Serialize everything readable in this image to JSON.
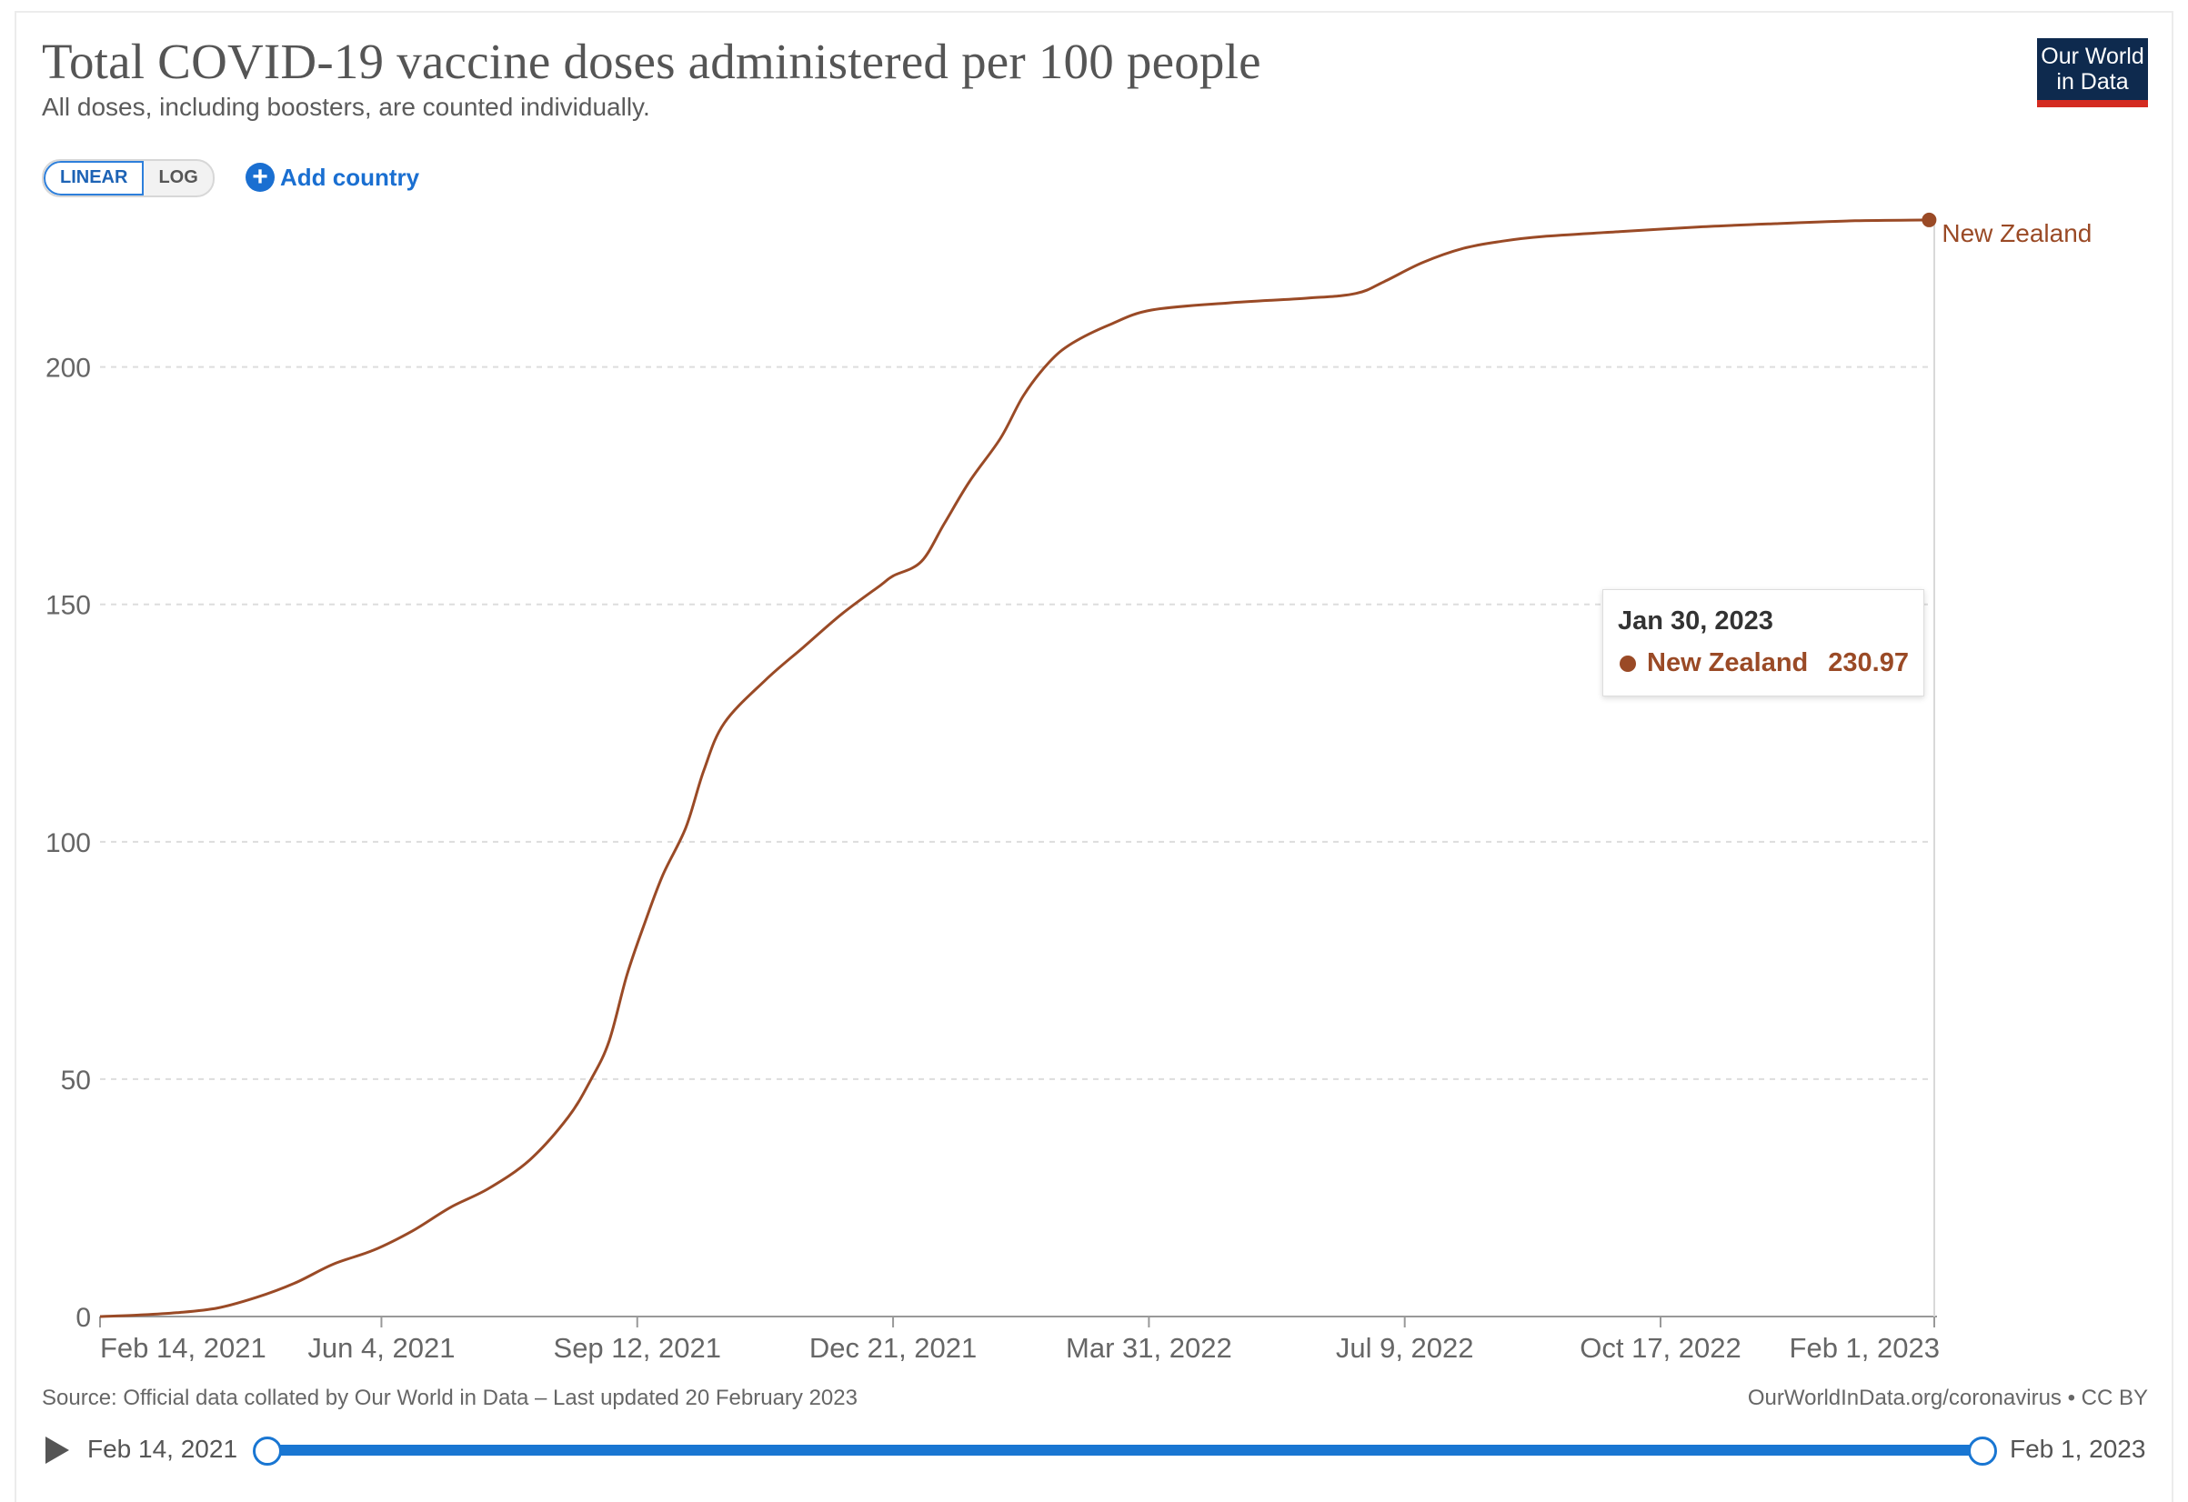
{
  "header": {
    "title": "Total COVID-19 vaccine doses administered per 100 people",
    "subtitle": "All doses, including boosters, are counted individually.",
    "logo_line1": "Our World",
    "logo_line2": "in Data"
  },
  "controls": {
    "linear_label": "LINEAR",
    "log_label": "LOG",
    "add_country_label": "Add country"
  },
  "tooltip": {
    "date": "Jan 30, 2023",
    "series": "New Zealand",
    "value": "230.97"
  },
  "footer": {
    "source": "Source: Official data collated by Our World in Data – Last updated 20 February 2023",
    "credit": "OurWorldInData.org/coronavirus • CC BY"
  },
  "timeline": {
    "start_label": "Feb 14, 2021",
    "end_label": "Feb 1, 2023"
  },
  "chart_data": {
    "type": "line",
    "title": "Total COVID-19 vaccine doses administered per 100 people",
    "subtitle": "All doses, including boosters, are counted individually.",
    "xlabel": "",
    "ylabel": "",
    "x_type": "date",
    "xlim": [
      "2021-02-14",
      "2023-02-01"
    ],
    "ylim": [
      0,
      230
    ],
    "y_ticks": [
      0,
      50,
      100,
      150,
      200
    ],
    "x_tick_labels": [
      "Feb 14, 2021",
      "Jun 4, 2021",
      "Sep 12, 2021",
      "Dec 21, 2021",
      "Mar 31, 2022",
      "Jul 9, 2022",
      "Oct 17, 2022",
      "Feb 1, 2023"
    ],
    "x_tick_dates": [
      "2021-02-14",
      "2021-06-04",
      "2021-09-12",
      "2021-12-21",
      "2022-03-31",
      "2022-07-09",
      "2022-10-17",
      "2023-02-01"
    ],
    "grid": "horizontal dashed",
    "legend": "end-of-line label",
    "color": "#9a4a26",
    "series": [
      {
        "name": "New Zealand",
        "x": [
          "2021-02-14",
          "2021-03-01",
          "2021-03-16",
          "2021-04-01",
          "2021-04-16",
          "2021-05-01",
          "2021-05-16",
          "2021-06-01",
          "2021-06-16",
          "2021-07-01",
          "2021-07-16",
          "2021-08-01",
          "2021-08-16",
          "2021-08-25",
          "2021-09-01",
          "2021-09-08",
          "2021-09-15",
          "2021-09-22",
          "2021-10-01",
          "2021-10-08",
          "2021-10-16",
          "2021-11-01",
          "2021-11-16",
          "2021-12-01",
          "2021-12-16",
          "2021-12-21",
          "2022-01-01",
          "2022-01-10",
          "2022-01-20",
          "2022-02-01",
          "2022-02-10",
          "2022-02-20",
          "2022-03-01",
          "2022-03-16",
          "2022-04-01",
          "2022-05-01",
          "2022-06-01",
          "2022-06-20",
          "2022-07-01",
          "2022-07-16",
          "2022-08-01",
          "2022-08-16",
          "2022-09-01",
          "2022-10-01",
          "2022-11-01",
          "2022-12-01",
          "2023-01-01",
          "2023-01-30"
        ],
        "values": [
          0,
          0.3,
          0.8,
          1.8,
          4,
          7,
          11,
          14,
          18,
          23,
          27,
          33,
          42,
          50,
          58,
          72,
          83,
          93,
          103,
          115,
          125,
          134,
          141,
          148,
          154,
          156,
          159,
          167,
          176,
          185,
          194,
          201,
          205,
          209,
          212,
          213.5,
          214.5,
          215.5,
          218,
          222,
          225,
          226.5,
          227.5,
          228.5,
          229.5,
          230.2,
          230.8,
          230.97
        ]
      }
    ]
  }
}
